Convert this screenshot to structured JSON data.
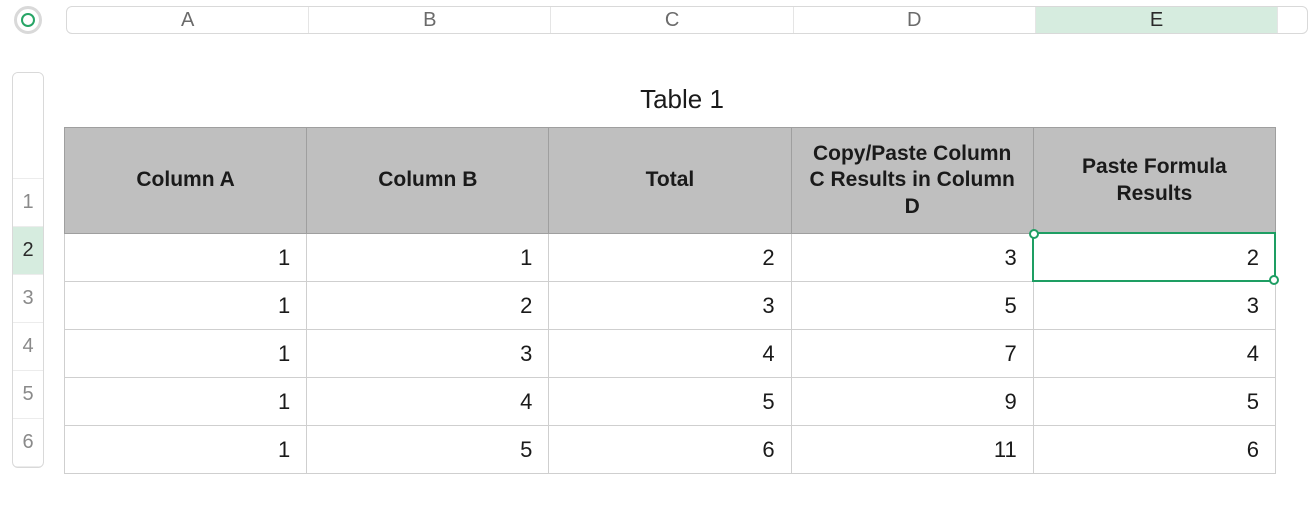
{
  "colors": {
    "accent": "#1e9e63",
    "header_bg": "#bfbfbf",
    "ruler_sel_bg": "#d6ecdf"
  },
  "ruler": {
    "columns": [
      "A",
      "B",
      "C",
      "D",
      "E"
    ],
    "selected_column": "E",
    "rows": [
      "1",
      "2",
      "3",
      "4",
      "5",
      "6"
    ],
    "selected_row": "2"
  },
  "table": {
    "title": "Table 1",
    "headers": [
      "Column A",
      "Column B",
      "Total",
      "Copy/Paste Column C Results in Column D",
      "Paste Formula Results"
    ],
    "rows": [
      [
        "1",
        "1",
        "2",
        "3",
        "2"
      ],
      [
        "1",
        "2",
        "3",
        "5",
        "3"
      ],
      [
        "1",
        "3",
        "4",
        "7",
        "4"
      ],
      [
        "1",
        "4",
        "5",
        "9",
        "5"
      ],
      [
        "1",
        "5",
        "6",
        "11",
        "6"
      ]
    ]
  },
  "selection": {
    "cell_label": "E2",
    "row_index": 0,
    "col_index": 4
  }
}
